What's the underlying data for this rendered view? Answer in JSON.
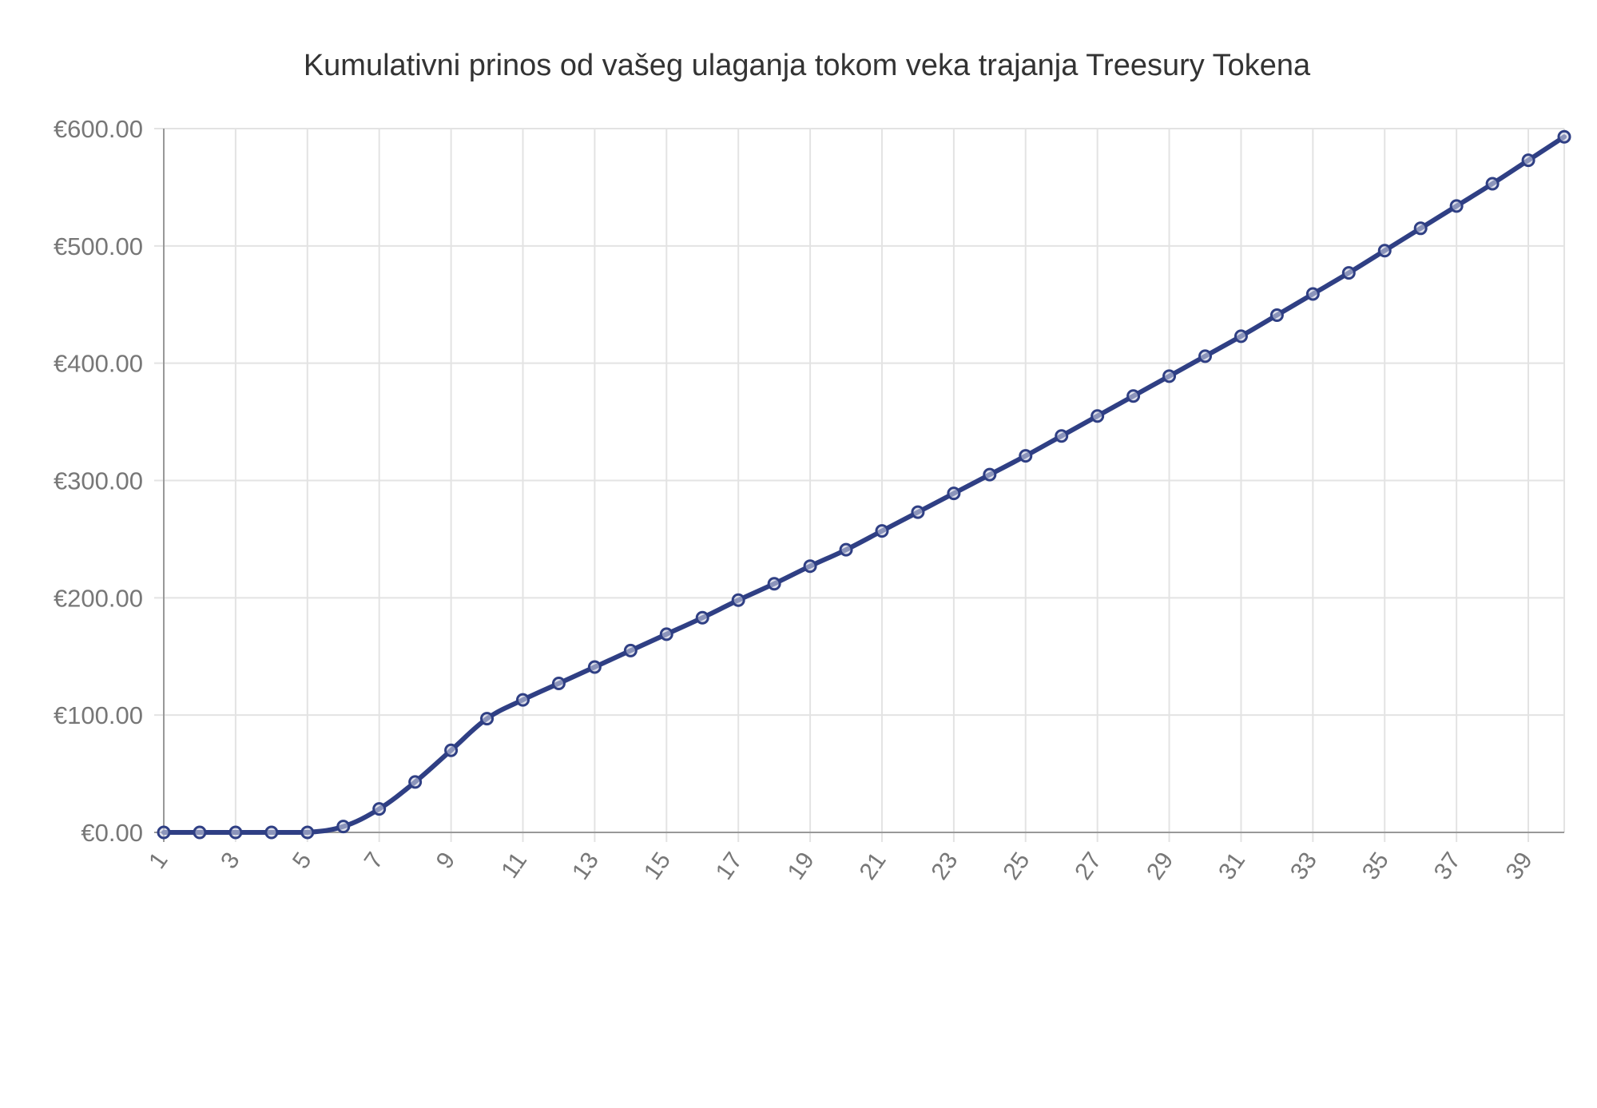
{
  "chart_data": {
    "type": "line",
    "title": "Kumulativni prinos od vašeg ulaganja tokom veka trajanja Treesury Tokena",
    "xlabel": "",
    "ylabel": "",
    "x": [
      1,
      2,
      3,
      4,
      5,
      6,
      7,
      8,
      9,
      10,
      11,
      12,
      13,
      14,
      15,
      16,
      17,
      18,
      19,
      20,
      21,
      22,
      23,
      24,
      25,
      26,
      27,
      28,
      29,
      30,
      31,
      32,
      33,
      34,
      35,
      36,
      37,
      38,
      39,
      40
    ],
    "x_tick_labels": [
      "1",
      "3",
      "5",
      "7",
      "9",
      "11",
      "13",
      "15",
      "17",
      "19",
      "21",
      "23",
      "25",
      "27",
      "29",
      "31",
      "33",
      "35",
      "37",
      "39"
    ],
    "y_tick_labels": [
      "€0.00",
      "€100.00",
      "€200.00",
      "€300.00",
      "€400.00",
      "€500.00",
      "€600.00"
    ],
    "y_ticks": [
      0,
      100,
      200,
      300,
      400,
      500,
      600
    ],
    "ylim": [
      0,
      600
    ],
    "xlim": [
      1,
      40
    ],
    "grid": true,
    "legend": "none",
    "series": [
      {
        "color": "#2f3f84",
        "values": [
          0,
          0,
          0,
          0,
          0,
          5,
          20,
          43,
          70,
          97,
          113,
          127,
          141,
          155,
          169,
          183,
          198,
          212,
          227,
          241,
          257,
          273,
          289,
          305,
          321,
          338,
          355,
          372,
          389,
          406,
          423,
          441,
          459,
          477,
          496,
          515,
          534,
          553,
          573,
          593
        ]
      }
    ]
  }
}
